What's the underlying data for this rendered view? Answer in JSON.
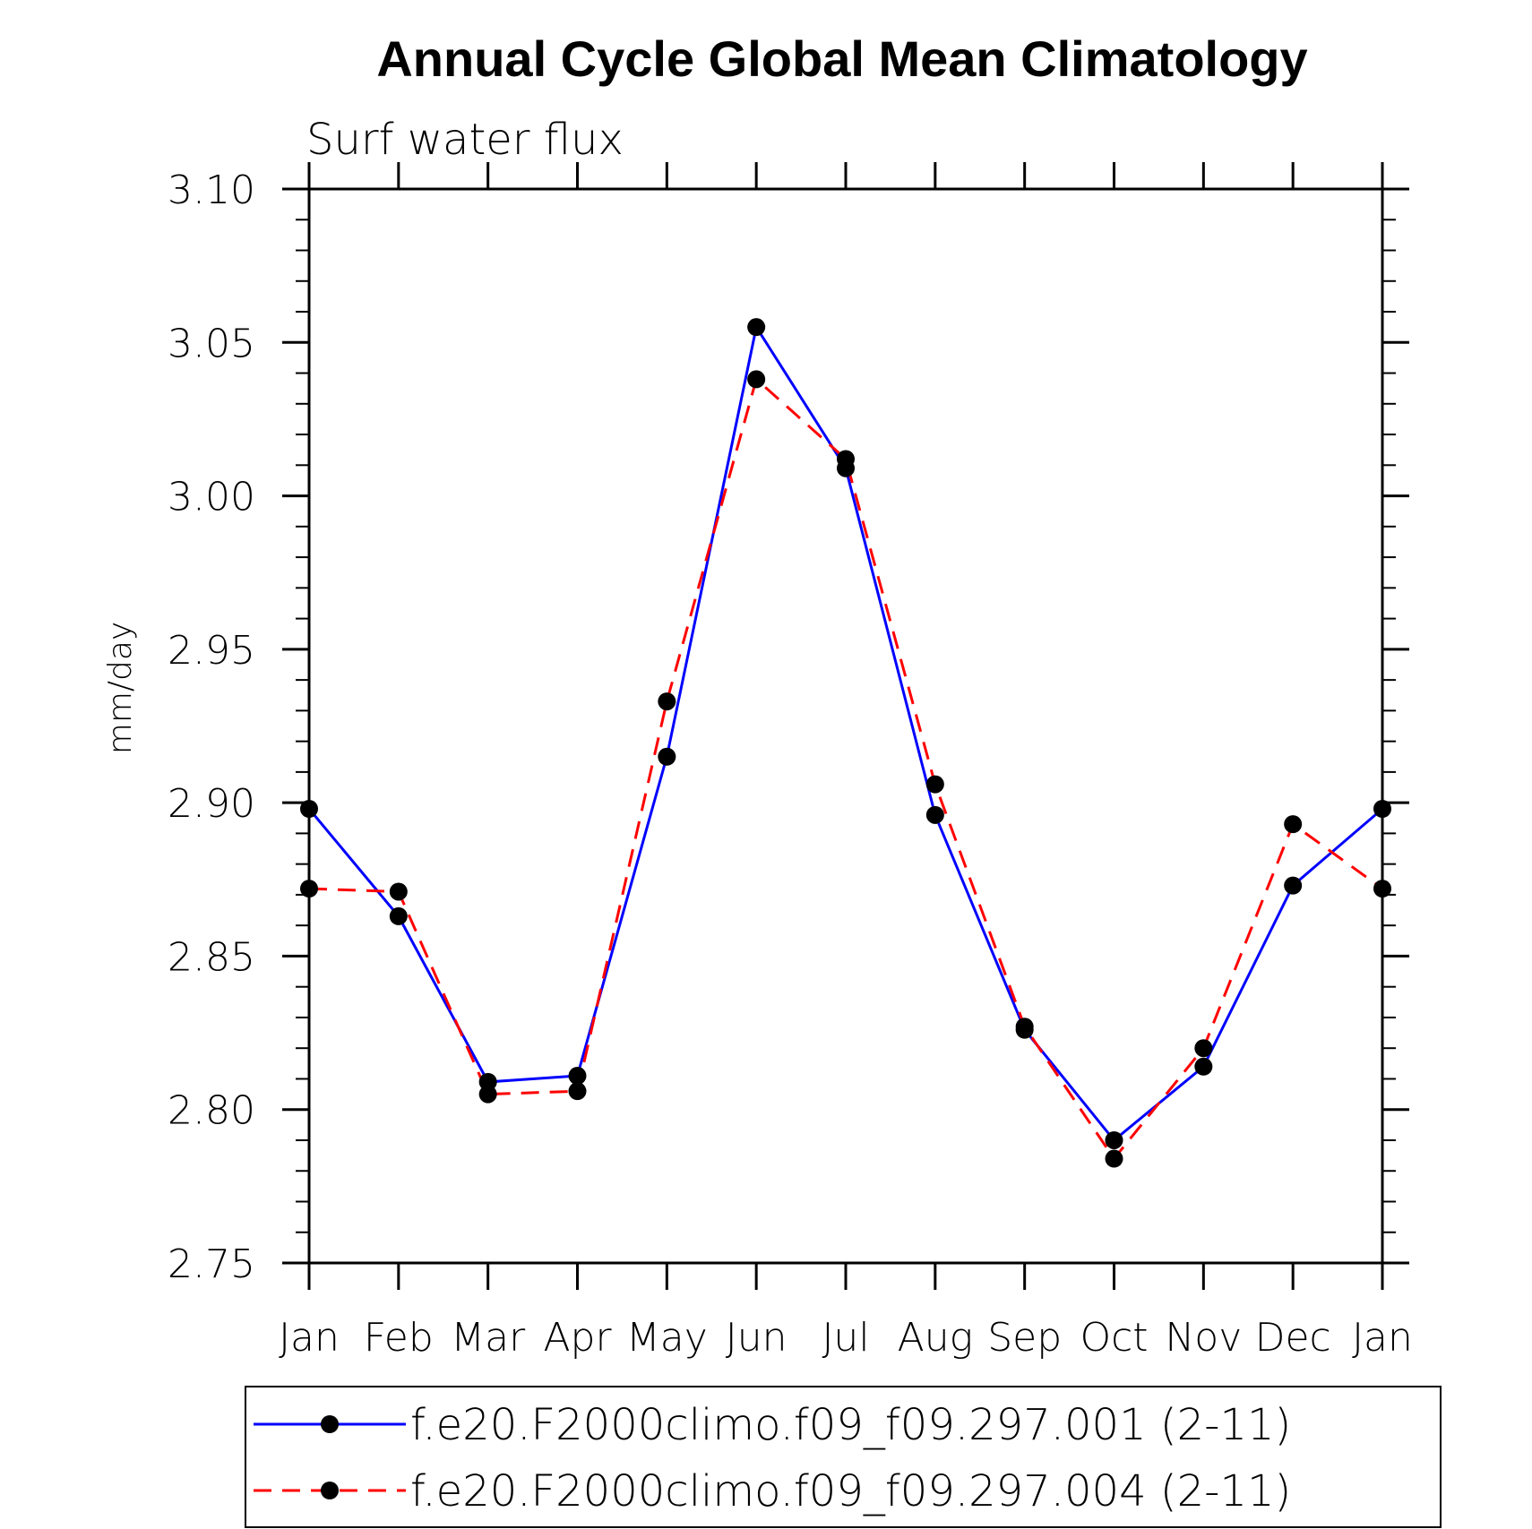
{
  "chart_data": {
    "type": "line",
    "title": "Annual Cycle Global Mean Climatology",
    "subtitle": "Surf water flux",
    "xlabel": "",
    "ylabel": "mm/day",
    "categories": [
      "Jan",
      "Feb",
      "Mar",
      "Apr",
      "May",
      "Jun",
      "Jul",
      "Aug",
      "Sep",
      "Oct",
      "Nov",
      "Dec",
      "Jan"
    ],
    "ylim": [
      2.75,
      3.1
    ],
    "yticks": [
      "2.75",
      "2.80",
      "2.85",
      "2.90",
      "2.95",
      "3.00",
      "3.05",
      "3.10"
    ],
    "ytick_values": [
      2.75,
      2.8,
      2.85,
      2.9,
      2.95,
      3.0,
      3.05,
      3.1
    ],
    "grid": false,
    "legend_position": "bottom",
    "series": [
      {
        "name": "f.e20.F2000climo.f09_f09.297.001 (2-11)",
        "color": "#0000ff",
        "line_style": "solid",
        "marker": "filled-circle",
        "marker_color": "#000000",
        "values": [
          2.898,
          2.863,
          2.809,
          2.811,
          2.915,
          3.055,
          3.009,
          2.896,
          2.826,
          2.79,
          2.814,
          2.873,
          2.898
        ]
      },
      {
        "name": "f.e20.F2000climo.f09_f09.297.004 (2-11)",
        "color": "#ff0000",
        "line_style": "dashed",
        "marker": "filled-circle",
        "marker_color": "#000000",
        "values": [
          2.872,
          2.871,
          2.805,
          2.806,
          2.933,
          3.038,
          3.012,
          2.906,
          2.827,
          2.784,
          2.82,
          2.893,
          2.872
        ]
      }
    ]
  }
}
